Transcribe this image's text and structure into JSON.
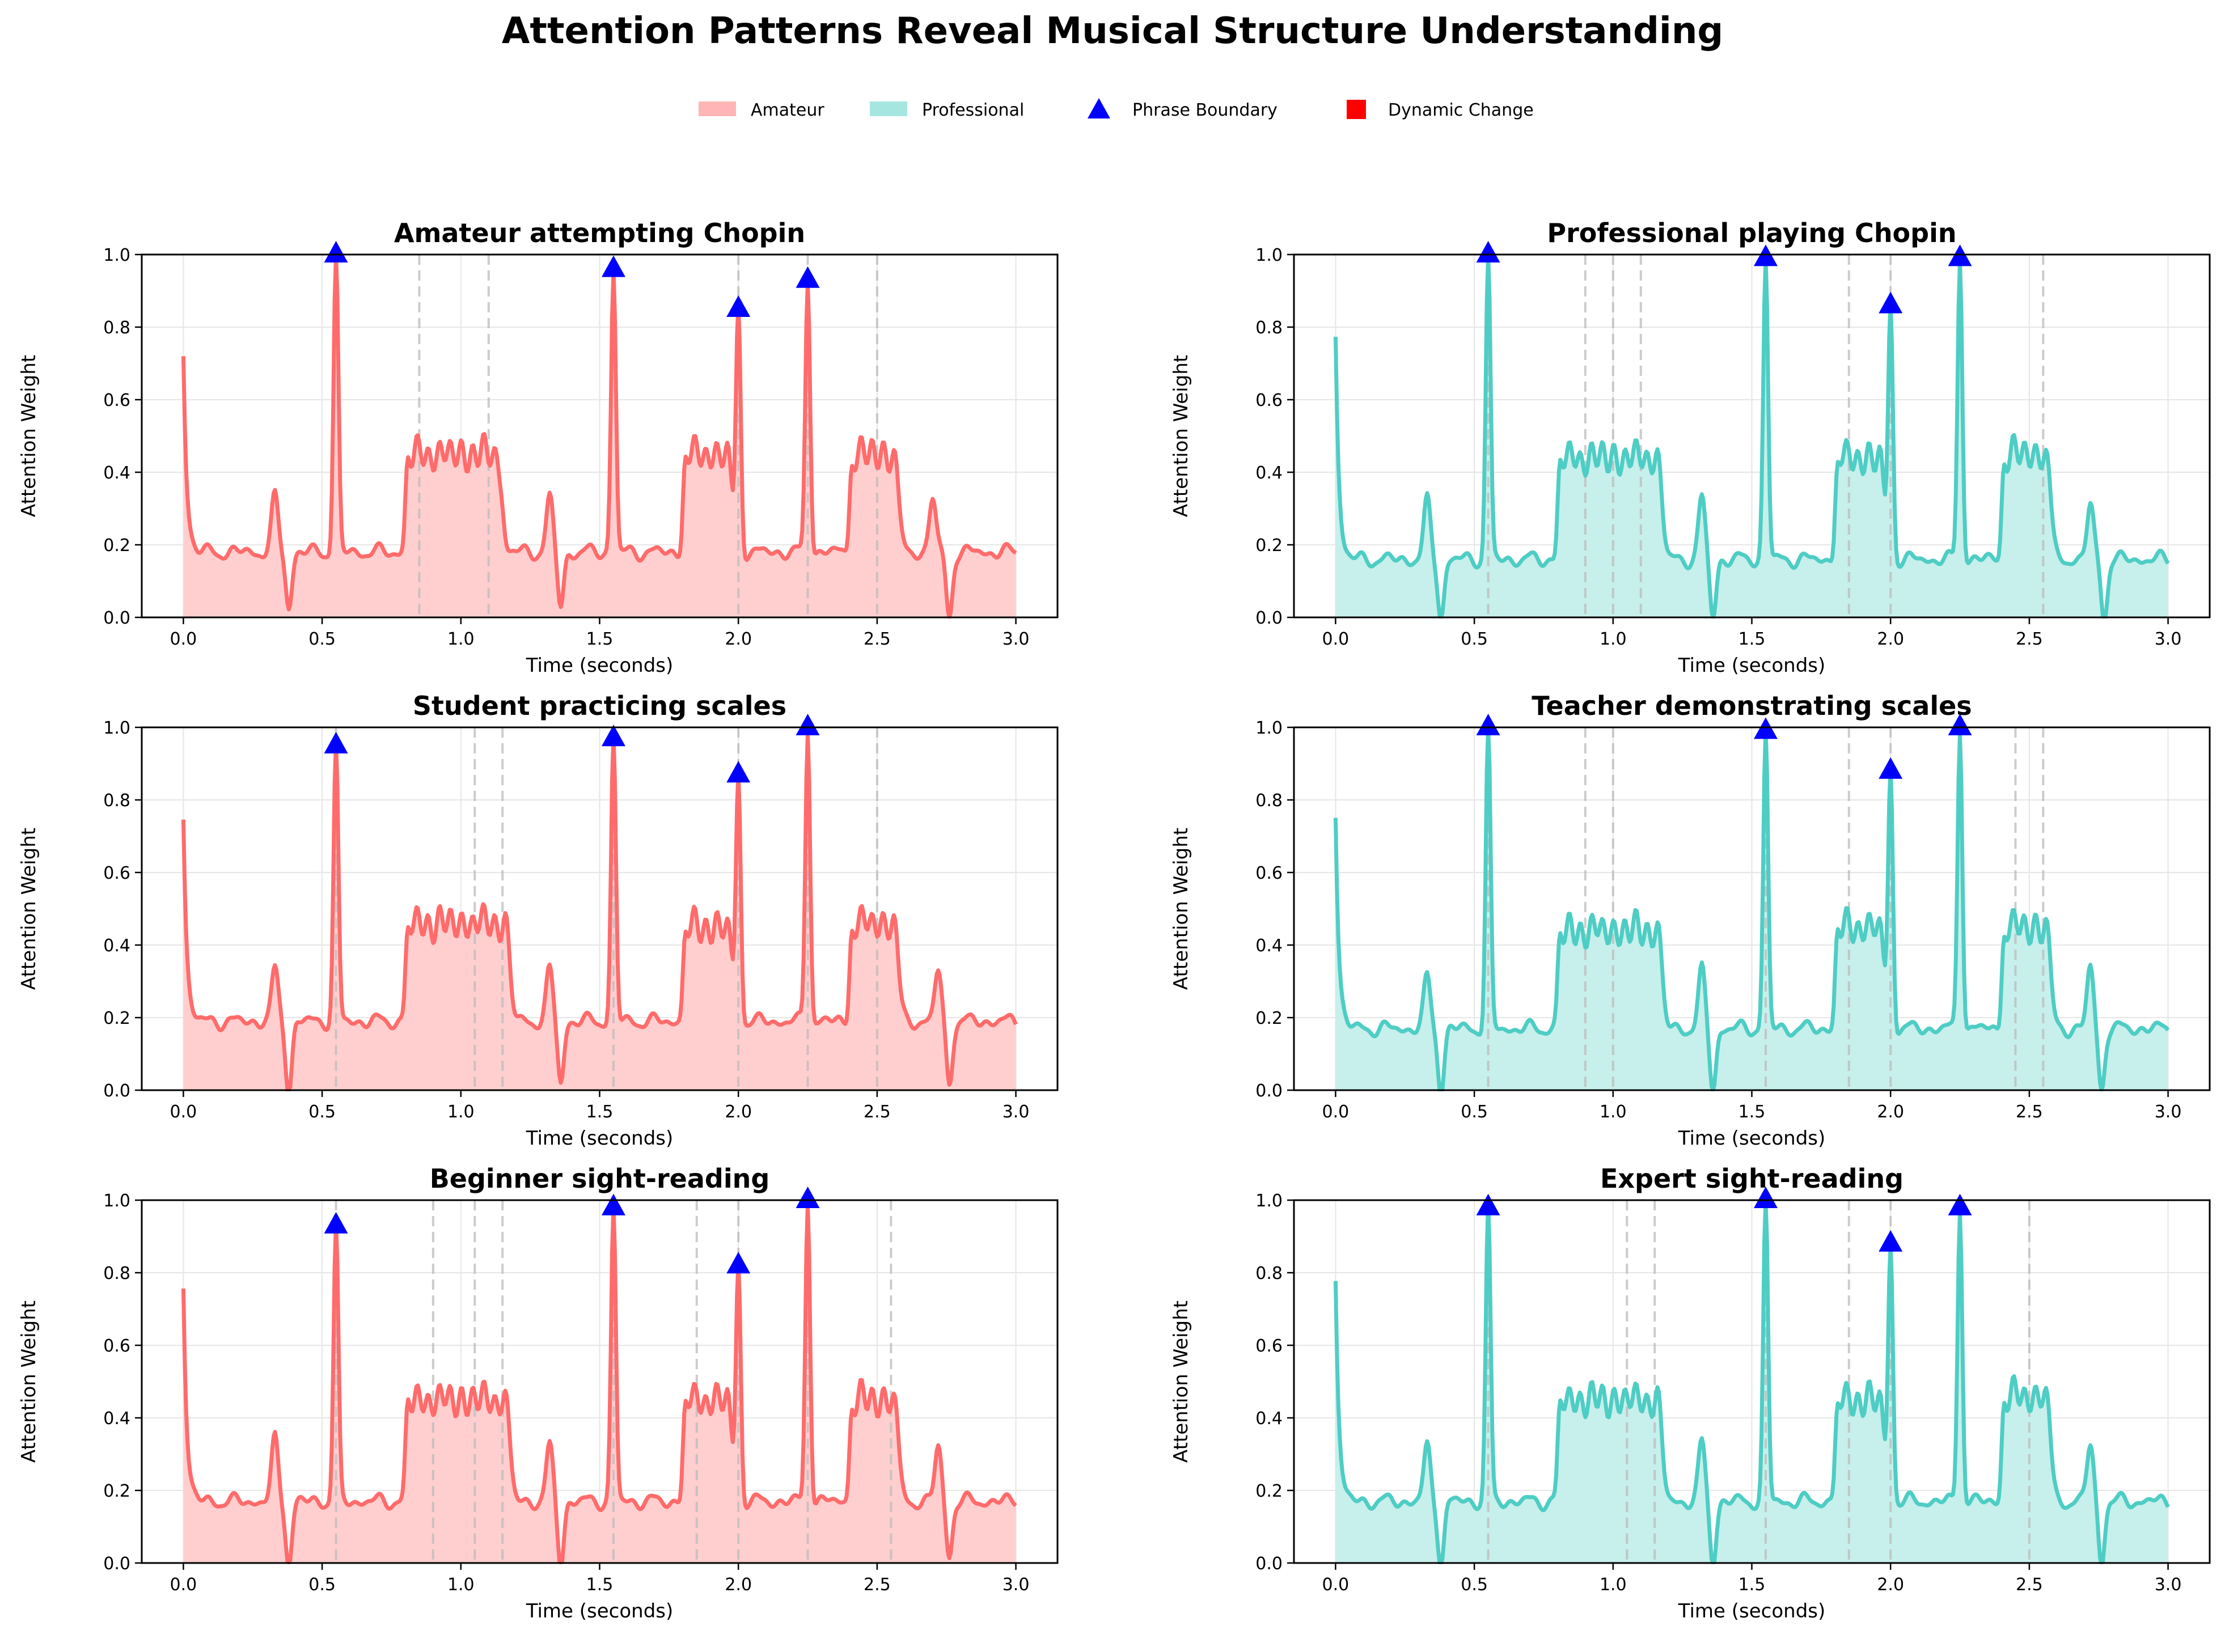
{
  "figure": {
    "title": "Attention Patterns Reveal Musical Structure Understanding"
  },
  "legend": {
    "placement": "top-center",
    "items": [
      {
        "label": "Amateur",
        "kind": "patch",
        "color": "#FF6B6B"
      },
      {
        "label": "Professional",
        "kind": "patch",
        "color": "#4ECDC4"
      },
      {
        "label": "Phrase Boundary",
        "kind": "triangle",
        "color": "#0000FF"
      },
      {
        "label": "Dynamic Change",
        "kind": "square",
        "color": "#FF0000"
      }
    ]
  },
  "colors": {
    "amateur": "#FF6B6B",
    "amateur_fill": "#FFCFCF",
    "professional": "#4ECDC4",
    "professional_fill": "#C7EFEC",
    "marker": "#0000FF",
    "dynamic": "#FF0000",
    "grid": "#E6E6E6",
    "guide": "#BBBBBB"
  },
  "chart_data": [
    {
      "type": "area",
      "title": "Amateur attempting Chopin",
      "kind": "amateur",
      "xlabel": "Time (seconds)",
      "ylabel": "Attention Weight",
      "xlim": [
        -0.15,
        3.15
      ],
      "ylim": [
        0,
        1
      ],
      "xticks": [
        "0.0",
        "0.5",
        "1.0",
        "1.5",
        "2.0",
        "2.5",
        "3.0"
      ],
      "yticks": [
        "0.0",
        "0.2",
        "0.4",
        "0.6",
        "0.8",
        "1.0"
      ],
      "grid": true,
      "start_value": 0.73,
      "baseline": 0.18,
      "plateaus": [
        [
          0.8,
          1.15,
          0.45
        ],
        [
          1.8,
          1.98,
          0.45
        ],
        [
          2.4,
          2.58,
          0.45
        ]
      ],
      "small_bumps": [
        [
          0.33,
          0.33
        ],
        [
          1.32,
          0.33
        ],
        [
          2.7,
          0.33
        ]
      ],
      "dips": [
        [
          0.38,
          0.03
        ],
        [
          1.36,
          0.03
        ],
        [
          2.76,
          0.0
        ]
      ],
      "spikes": [
        [
          0.55,
          1.0
        ],
        [
          1.55,
          0.96
        ],
        [
          2.0,
          0.85
        ],
        [
          2.25,
          0.93
        ]
      ],
      "phrase_boundaries": [
        [
          0.55,
          1.0
        ],
        [
          1.55,
          0.96
        ],
        [
          2.0,
          0.85
        ],
        [
          2.25,
          0.93
        ]
      ],
      "dynamic_changes": [
        0.85,
        1.1,
        2.0,
        2.25,
        2.5
      ]
    },
    {
      "type": "area",
      "title": "Professional playing Chopin",
      "kind": "professional",
      "xlabel": "Time (seconds)",
      "ylabel": "Attention Weight",
      "xlim": [
        -0.15,
        3.15
      ],
      "ylim": [
        0,
        1
      ],
      "xticks": [
        "0.0",
        "0.5",
        "1.0",
        "1.5",
        "2.0",
        "2.5",
        "3.0"
      ],
      "yticks": [
        "0.0",
        "0.2",
        "0.4",
        "0.6",
        "0.8",
        "1.0"
      ],
      "grid": true,
      "start_value": 0.78,
      "baseline": 0.16,
      "plateaus": [
        [
          0.8,
          1.18,
          0.44
        ],
        [
          1.8,
          1.98,
          0.44
        ],
        [
          2.4,
          2.58,
          0.45
        ]
      ],
      "small_bumps": [
        [
          0.33,
          0.32
        ],
        [
          1.32,
          0.33
        ],
        [
          2.72,
          0.31
        ]
      ],
      "dips": [
        [
          0.38,
          0.0
        ],
        [
          1.36,
          0.0
        ],
        [
          2.77,
          0.0
        ]
      ],
      "spikes": [
        [
          0.55,
          1.0
        ],
        [
          1.55,
          0.99
        ],
        [
          2.0,
          0.86
        ],
        [
          2.25,
          0.99
        ]
      ],
      "phrase_boundaries": [
        [
          0.55,
          1.0
        ],
        [
          1.55,
          0.99
        ],
        [
          2.0,
          0.86
        ],
        [
          2.25,
          0.99
        ]
      ],
      "dynamic_changes": [
        0.55,
        0.9,
        1.0,
        1.1,
        1.85,
        2.0,
        2.55
      ]
    },
    {
      "type": "area",
      "title": "Student practicing scales",
      "kind": "amateur",
      "xlabel": "Time (seconds)",
      "ylabel": "Attention Weight",
      "xlim": [
        -0.15,
        3.15
      ],
      "ylim": [
        0,
        1
      ],
      "xticks": [
        "0.0",
        "0.5",
        "1.0",
        "1.5",
        "2.0",
        "2.5",
        "3.0"
      ],
      "yticks": [
        "0.0",
        "0.2",
        "0.4",
        "0.6",
        "0.8",
        "1.0"
      ],
      "grid": true,
      "start_value": 0.76,
      "baseline": 0.19,
      "plateaus": [
        [
          0.8,
          1.18,
          0.46
        ],
        [
          1.8,
          1.98,
          0.45
        ],
        [
          2.4,
          2.58,
          0.46
        ]
      ],
      "small_bumps": [
        [
          0.33,
          0.33
        ],
        [
          1.32,
          0.33
        ],
        [
          2.72,
          0.33
        ]
      ],
      "dips": [
        [
          0.38,
          0.0
        ],
        [
          1.36,
          0.02
        ],
        [
          2.76,
          0.02
        ]
      ],
      "spikes": [
        [
          0.55,
          0.95
        ],
        [
          1.55,
          0.97
        ],
        [
          2.0,
          0.87
        ],
        [
          2.25,
          1.0
        ]
      ],
      "phrase_boundaries": [
        [
          0.55,
          0.95
        ],
        [
          1.55,
          0.97
        ],
        [
          2.0,
          0.87
        ],
        [
          2.25,
          1.0
        ]
      ],
      "dynamic_changes": [
        0.55,
        1.05,
        1.15,
        1.55,
        2.0,
        2.25,
        2.5
      ]
    },
    {
      "type": "area",
      "title": "Teacher demonstrating scales",
      "kind": "professional",
      "xlabel": "Time (seconds)",
      "ylabel": "Attention Weight",
      "xlim": [
        -0.15,
        3.15
      ],
      "ylim": [
        0,
        1
      ],
      "xticks": [
        "0.0",
        "0.5",
        "1.0",
        "1.5",
        "2.0",
        "2.5",
        "3.0"
      ],
      "yticks": [
        "0.0",
        "0.2",
        "0.4",
        "0.6",
        "0.8",
        "1.0"
      ],
      "grid": true,
      "start_value": 0.77,
      "baseline": 0.17,
      "plateaus": [
        [
          0.8,
          1.18,
          0.44
        ],
        [
          1.8,
          1.98,
          0.45
        ],
        [
          2.4,
          2.58,
          0.45
        ]
      ],
      "small_bumps": [
        [
          0.33,
          0.31
        ],
        [
          1.32,
          0.33
        ],
        [
          2.72,
          0.34
        ]
      ],
      "dips": [
        [
          0.38,
          0.0
        ],
        [
          1.36,
          0.0
        ],
        [
          2.76,
          0.0
        ]
      ],
      "spikes": [
        [
          0.55,
          1.0
        ],
        [
          1.55,
          0.99
        ],
        [
          2.0,
          0.88
        ],
        [
          2.25,
          1.0
        ]
      ],
      "phrase_boundaries": [
        [
          0.55,
          1.0
        ],
        [
          1.55,
          0.99
        ],
        [
          2.0,
          0.88
        ],
        [
          2.25,
          1.0
        ]
      ],
      "dynamic_changes": [
        0.55,
        0.9,
        1.0,
        1.55,
        1.85,
        2.0,
        2.45,
        2.55
      ]
    },
    {
      "type": "area",
      "title": "Beginner sight-reading",
      "kind": "amateur",
      "xlabel": "Time (seconds)",
      "ylabel": "Attention Weight",
      "xlim": [
        -0.15,
        3.15
      ],
      "ylim": [
        0,
        1
      ],
      "xticks": [
        "0.0",
        "0.5",
        "1.0",
        "1.5",
        "2.0",
        "2.5",
        "3.0"
      ],
      "yticks": [
        "0.0",
        "0.2",
        "0.4",
        "0.6",
        "0.8",
        "1.0"
      ],
      "grid": true,
      "start_value": 0.77,
      "baseline": 0.17,
      "plateaus": [
        [
          0.8,
          1.18,
          0.45
        ],
        [
          1.8,
          1.98,
          0.45
        ],
        [
          2.4,
          2.58,
          0.45
        ]
      ],
      "small_bumps": [
        [
          0.33,
          0.34
        ],
        [
          1.32,
          0.32
        ],
        [
          2.72,
          0.32
        ]
      ],
      "dips": [
        [
          0.38,
          0.0
        ],
        [
          1.36,
          0.0
        ],
        [
          2.76,
          0.02
        ]
      ],
      "spikes": [
        [
          0.55,
          0.93
        ],
        [
          1.55,
          0.98
        ],
        [
          2.0,
          0.82
        ],
        [
          2.25,
          1.0
        ]
      ],
      "phrase_boundaries": [
        [
          0.55,
          0.93
        ],
        [
          1.55,
          0.98
        ],
        [
          2.0,
          0.82
        ],
        [
          2.25,
          1.0
        ]
      ],
      "dynamic_changes": [
        0.55,
        0.9,
        1.05,
        1.15,
        1.55,
        1.85,
        2.0,
        2.25,
        2.55
      ]
    },
    {
      "type": "area",
      "title": "Expert sight-reading",
      "kind": "professional",
      "xlabel": "Time (seconds)",
      "ylabel": "Attention Weight",
      "xlim": [
        -0.15,
        3.15
      ],
      "ylim": [
        0,
        1
      ],
      "xticks": [
        "0.0",
        "0.5",
        "1.0",
        "1.5",
        "2.0",
        "2.5",
        "3.0"
      ],
      "yticks": [
        "0.0",
        "0.2",
        "0.4",
        "0.6",
        "0.8",
        "1.0"
      ],
      "grid": true,
      "start_value": 0.79,
      "baseline": 0.17,
      "plateaus": [
        [
          0.8,
          1.18,
          0.45
        ],
        [
          1.8,
          1.98,
          0.45
        ],
        [
          2.4,
          2.58,
          0.46
        ]
      ],
      "small_bumps": [
        [
          0.33,
          0.32
        ],
        [
          1.32,
          0.33
        ],
        [
          2.72,
          0.33
        ]
      ],
      "dips": [
        [
          0.38,
          0.0
        ],
        [
          1.36,
          0.0
        ],
        [
          2.76,
          0.0
        ]
      ],
      "spikes": [
        [
          0.55,
          0.98
        ],
        [
          1.55,
          1.0
        ],
        [
          2.0,
          0.88
        ],
        [
          2.25,
          0.98
        ]
      ],
      "phrase_boundaries": [
        [
          0.55,
          0.98
        ],
        [
          1.55,
          1.0
        ],
        [
          2.0,
          0.88
        ],
        [
          2.25,
          0.98
        ]
      ],
      "dynamic_changes": [
        0.55,
        1.05,
        1.15,
        1.55,
        1.85,
        2.0,
        2.5
      ]
    }
  ]
}
